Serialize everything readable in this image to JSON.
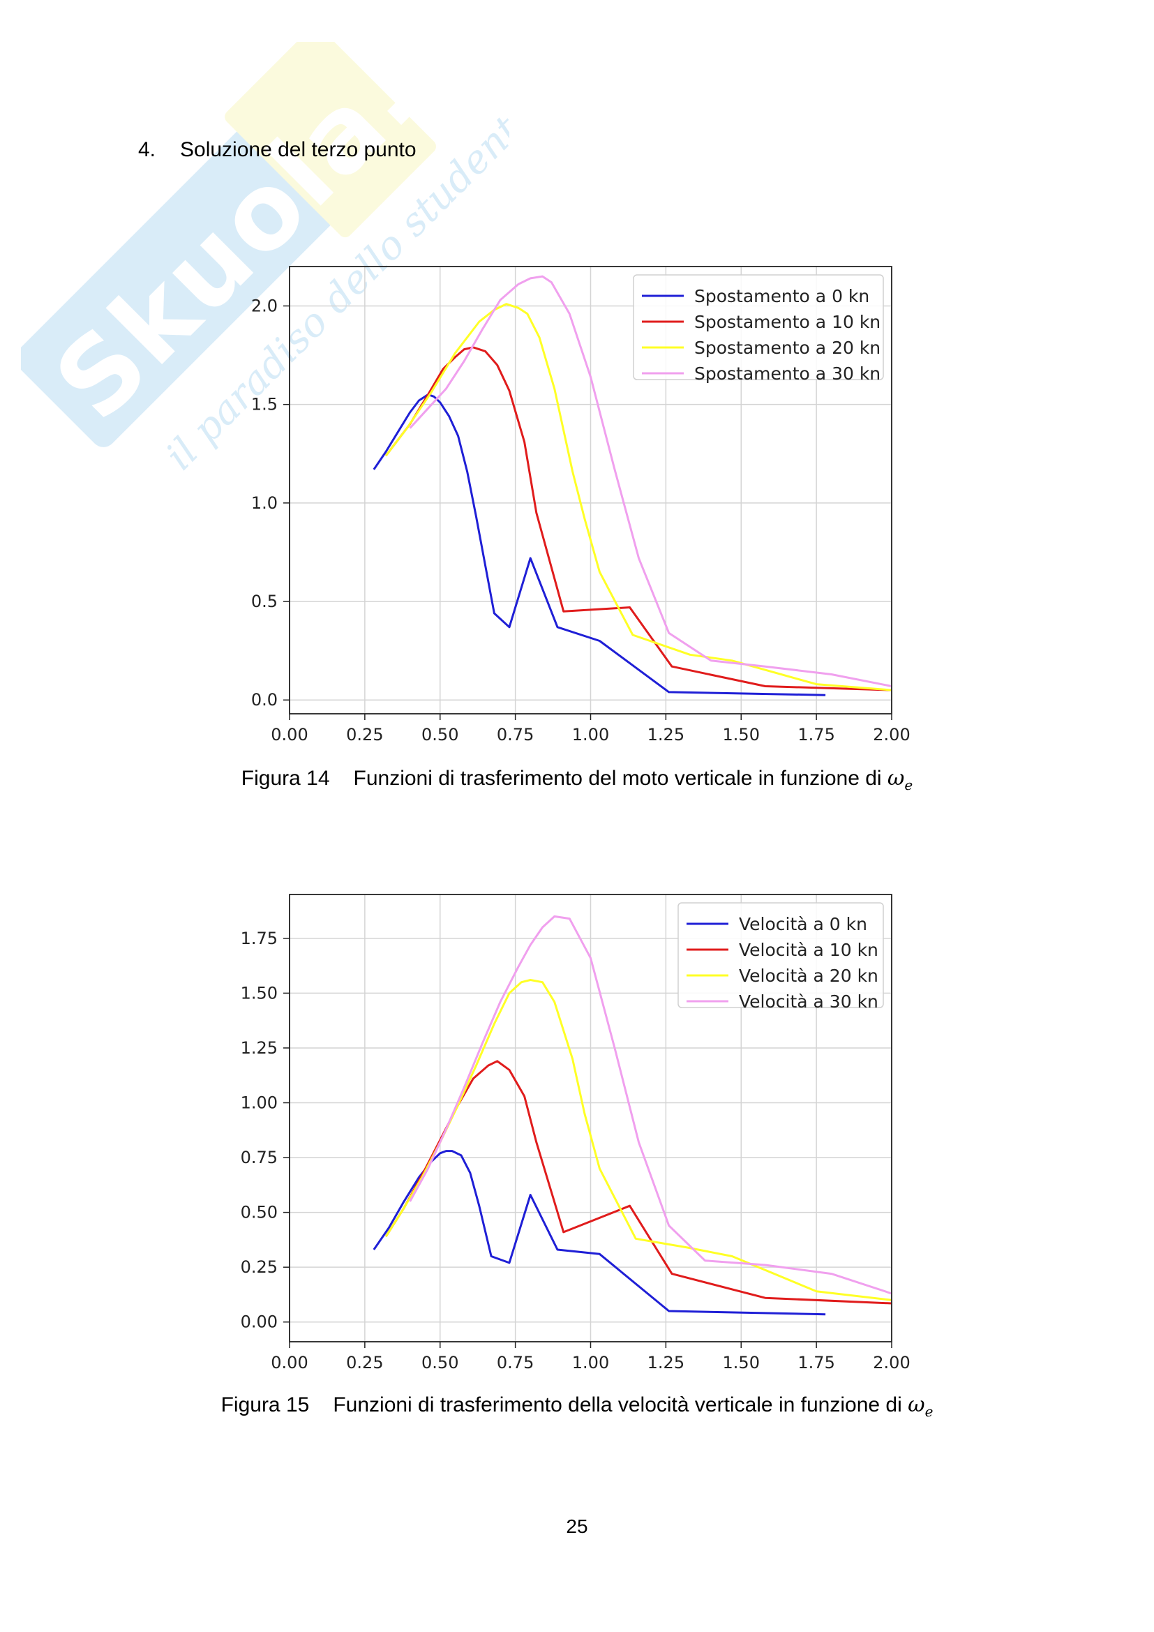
{
  "section": {
    "number": "4.",
    "title": "Soluzione del terzo punto"
  },
  "watermark": {
    "brand": "Skuola.net",
    "tagline": "il paradiso dello studente"
  },
  "page_number": "25",
  "colors": {
    "blue": "#1f1fd6",
    "red": "#e01c1c",
    "yellow": "#ffff26",
    "pink": "#f0a0ee"
  },
  "figures": [
    {
      "label": "Figura 14",
      "caption": "Funzioni di trasferimento del moto verticale in funzione di",
      "symbol": "ω",
      "symbol_sub": "e"
    },
    {
      "label": "Figura 15",
      "caption": "Funzioni di trasferimento della velocità verticale in funzione di",
      "symbol": "ω",
      "symbol_sub": "e"
    }
  ],
  "chart_data": [
    {
      "type": "line",
      "title": "",
      "xlabel": "",
      "ylabel": "",
      "xlim": [
        0.0,
        2.0
      ],
      "ylim": [
        -0.07,
        2.2
      ],
      "xticks": [
        "0.00",
        "0.25",
        "0.50",
        "0.75",
        "1.00",
        "1.25",
        "1.50",
        "1.75",
        "2.00"
      ],
      "yticks": [
        "0.0",
        "0.5",
        "1.0",
        "1.5",
        "2.0"
      ],
      "grid": true,
      "legend": "top-right",
      "series": [
        {
          "name": "Spostamento a 0 kn",
          "color": "#1f1fd6",
          "x": [
            0.28,
            0.32,
            0.36,
            0.4,
            0.43,
            0.46,
            0.48,
            0.5,
            0.53,
            0.56,
            0.59,
            0.62,
            0.68,
            0.73,
            0.8,
            0.89,
            1.03,
            1.26,
            1.78
          ],
          "y": [
            1.17,
            1.26,
            1.36,
            1.46,
            1.52,
            1.55,
            1.54,
            1.51,
            1.44,
            1.34,
            1.16,
            0.93,
            0.44,
            0.37,
            0.72,
            0.37,
            0.3,
            0.04,
            0.025
          ]
        },
        {
          "name": "Spostamento a 10 kn",
          "color": "#e01c1c",
          "x": [
            0.32,
            0.4,
            0.46,
            0.51,
            0.55,
            0.58,
            0.61,
            0.65,
            0.69,
            0.73,
            0.78,
            0.82,
            0.91,
            1.13,
            1.27,
            1.58,
            2.0
          ],
          "y": [
            1.24,
            1.4,
            1.55,
            1.68,
            1.74,
            1.78,
            1.79,
            1.77,
            1.7,
            1.57,
            1.31,
            0.95,
            0.45,
            0.47,
            0.17,
            0.07,
            0.05
          ]
        },
        {
          "name": "Spostamento a 20 kn",
          "color": "#ffff26",
          "x": [
            0.32,
            0.39,
            0.47,
            0.55,
            0.63,
            0.68,
            0.72,
            0.76,
            0.79,
            0.83,
            0.88,
            0.94,
            0.98,
            1.03,
            1.14,
            1.33,
            1.47,
            1.75,
            2.0
          ],
          "y": [
            1.24,
            1.38,
            1.56,
            1.76,
            1.92,
            1.98,
            2.01,
            1.99,
            1.96,
            1.84,
            1.58,
            1.16,
            0.92,
            0.65,
            0.33,
            0.23,
            0.2,
            0.08,
            0.05
          ]
        },
        {
          "name": "Spostamento a 30 kn",
          "color": "#f0a0ee",
          "x": [
            0.4,
            0.46,
            0.52,
            0.58,
            0.64,
            0.7,
            0.76,
            0.8,
            0.84,
            0.87,
            0.93,
            1.0,
            1.08,
            1.16,
            1.26,
            1.4,
            1.58,
            1.8,
            2.0
          ],
          "y": [
            1.38,
            1.48,
            1.58,
            1.72,
            1.88,
            2.03,
            2.11,
            2.14,
            2.15,
            2.12,
            1.96,
            1.64,
            1.17,
            0.72,
            0.34,
            0.2,
            0.17,
            0.13,
            0.07
          ]
        }
      ]
    },
    {
      "type": "line",
      "title": "",
      "xlabel": "",
      "ylabel": "",
      "xlim": [
        0.0,
        2.0
      ],
      "ylim": [
        -0.09,
        1.95
      ],
      "xticks": [
        "0.00",
        "0.25",
        "0.50",
        "0.75",
        "1.00",
        "1.25",
        "1.50",
        "1.75",
        "2.00"
      ],
      "yticks": [
        "0.00",
        "0.25",
        "0.50",
        "0.75",
        "1.00",
        "1.25",
        "1.50",
        "1.75"
      ],
      "grid": true,
      "legend": "top-right",
      "series": [
        {
          "name": "Velocità a 0 kn",
          "color": "#1f1fd6",
          "x": [
            0.28,
            0.33,
            0.38,
            0.43,
            0.47,
            0.5,
            0.52,
            0.54,
            0.57,
            0.6,
            0.63,
            0.67,
            0.73,
            0.8,
            0.89,
            1.03,
            1.26,
            1.78
          ],
          "y": [
            0.33,
            0.43,
            0.55,
            0.66,
            0.73,
            0.77,
            0.78,
            0.78,
            0.76,
            0.68,
            0.53,
            0.3,
            0.27,
            0.58,
            0.33,
            0.31,
            0.05,
            0.035
          ]
        },
        {
          "name": "Velocità a 10 kn",
          "color": "#e01c1c",
          "x": [
            0.32,
            0.38,
            0.44,
            0.5,
            0.56,
            0.61,
            0.66,
            0.69,
            0.73,
            0.78,
            0.82,
            0.91,
            1.13,
            1.27,
            1.58,
            2.0
          ],
          "y": [
            0.39,
            0.52,
            0.67,
            0.83,
            0.99,
            1.11,
            1.17,
            1.19,
            1.15,
            1.03,
            0.82,
            0.41,
            0.53,
            0.22,
            0.11,
            0.085
          ]
        },
        {
          "name": "Velocità a 20 kn",
          "color": "#ffff26",
          "x": [
            0.32,
            0.38,
            0.44,
            0.5,
            0.56,
            0.62,
            0.68,
            0.73,
            0.77,
            0.8,
            0.84,
            0.88,
            0.94,
            0.98,
            1.03,
            1.15,
            1.32,
            1.47,
            1.75,
            2.0
          ],
          "y": [
            0.39,
            0.52,
            0.66,
            0.82,
            0.99,
            1.17,
            1.36,
            1.5,
            1.55,
            1.56,
            1.55,
            1.46,
            1.2,
            0.95,
            0.7,
            0.38,
            0.34,
            0.3,
            0.14,
            0.1
          ]
        },
        {
          "name": "Velocità a 30 kn",
          "color": "#f0a0ee",
          "x": [
            0.4,
            0.46,
            0.52,
            0.58,
            0.64,
            0.7,
            0.76,
            0.8,
            0.84,
            0.88,
            0.93,
            1.0,
            1.08,
            1.16,
            1.26,
            1.38,
            1.58,
            1.8,
            2.0
          ],
          "y": [
            0.55,
            0.7,
            0.88,
            1.07,
            1.27,
            1.46,
            1.62,
            1.72,
            1.8,
            1.85,
            1.84,
            1.66,
            1.25,
            0.82,
            0.44,
            0.28,
            0.26,
            0.22,
            0.13
          ]
        }
      ]
    }
  ]
}
